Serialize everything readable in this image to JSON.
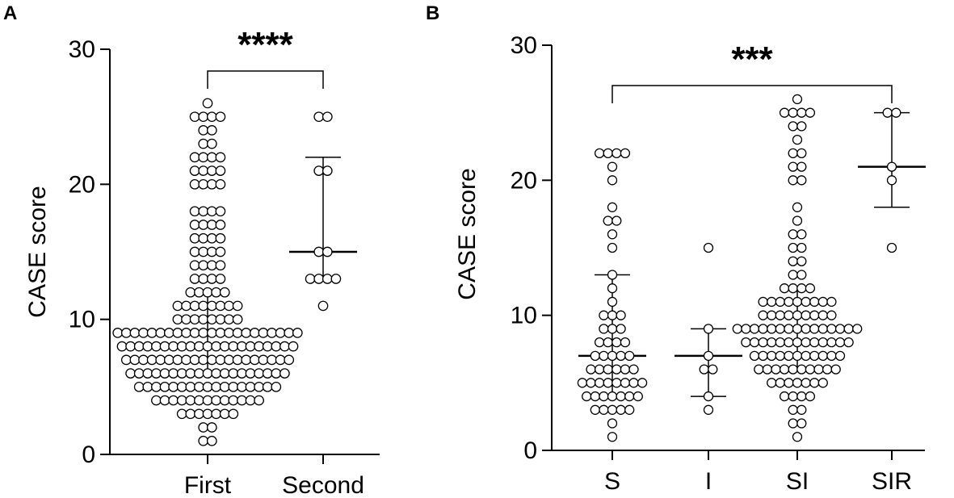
{
  "chart_data": [
    {
      "type": "scatter",
      "subtype": "dot-plot with median and interquartile range",
      "panel": "A",
      "ylabel": "CASE score",
      "xlabel": "",
      "ylim": [
        0,
        30
      ],
      "yticks": [
        0,
        10,
        20,
        30
      ],
      "categories": [
        "First",
        "Second"
      ],
      "points": {
        "First": [
          1,
          1,
          2,
          2,
          3,
          3,
          3,
          3,
          3,
          3,
          3,
          4,
          4,
          4,
          4,
          4,
          4,
          4,
          4,
          4,
          4,
          4,
          4,
          4,
          5,
          5,
          5,
          5,
          5,
          5,
          5,
          5,
          5,
          5,
          5,
          5,
          5,
          5,
          5,
          5,
          5,
          6,
          6,
          6,
          6,
          6,
          6,
          6,
          6,
          6,
          6,
          6,
          6,
          6,
          6,
          6,
          6,
          6,
          6,
          6,
          7,
          7,
          7,
          7,
          7,
          7,
          7,
          7,
          7,
          7,
          7,
          7,
          7,
          7,
          7,
          7,
          7,
          7,
          7,
          7,
          8,
          8,
          8,
          8,
          8,
          8,
          8,
          8,
          8,
          8,
          8,
          8,
          8,
          8,
          8,
          8,
          8,
          8,
          8,
          8,
          8,
          9,
          9,
          9,
          9,
          9,
          9,
          9,
          9,
          9,
          9,
          9,
          9,
          9,
          9,
          9,
          9,
          9,
          9,
          9,
          9,
          9,
          9,
          10,
          10,
          10,
          10,
          10,
          10,
          10,
          10,
          11,
          11,
          11,
          11,
          11,
          11,
          11,
          11,
          12,
          12,
          12,
          12,
          12,
          13,
          13,
          13,
          13,
          14,
          14,
          14,
          14,
          15,
          15,
          15,
          15,
          16,
          16,
          16,
          16,
          17,
          17,
          17,
          17,
          18,
          18,
          18,
          18,
          20,
          20,
          20,
          20,
          21,
          21,
          21,
          21,
          22,
          22,
          22,
          22,
          23,
          23,
          24,
          24,
          25,
          25,
          25,
          25,
          26
        ],
        "Second": [
          11,
          13,
          13,
          13,
          13,
          15,
          15,
          21,
          21,
          25,
          25
        ]
      },
      "summary": {
        "First": {
          "median": 8,
          "q1": 6,
          "q3": 12
        },
        "Second": {
          "median": 15,
          "q1": 13,
          "q3": 22
        }
      },
      "significance": {
        "from": "First",
        "to": "Second",
        "label": "****"
      }
    },
    {
      "type": "scatter",
      "subtype": "dot-plot with median and interquartile range",
      "panel": "B",
      "ylabel": "CASE score",
      "xlabel": "",
      "ylim": [
        0,
        30
      ],
      "yticks": [
        0,
        10,
        20,
        30
      ],
      "categories": [
        "S",
        "I",
        "SI",
        "SIR"
      ],
      "points": {
        "S": [
          1,
          2,
          3,
          3,
          3,
          3,
          3,
          4,
          4,
          4,
          4,
          4,
          4,
          4,
          5,
          5,
          5,
          5,
          5,
          5,
          5,
          5,
          6,
          6,
          6,
          6,
          6,
          6,
          7,
          7,
          7,
          7,
          7,
          8,
          8,
          8,
          8,
          9,
          9,
          9,
          10,
          10,
          10,
          11,
          12,
          13,
          15,
          16,
          17,
          17,
          18,
          20,
          21,
          22,
          22,
          22,
          22
        ],
        "I": [
          3,
          4,
          6,
          6,
          7,
          9,
          15
        ],
        "SI": [
          1,
          2,
          2,
          3,
          3,
          4,
          4,
          4,
          4,
          5,
          5,
          5,
          5,
          5,
          5,
          5,
          6,
          6,
          6,
          6,
          6,
          6,
          6,
          6,
          6,
          6,
          7,
          7,
          7,
          7,
          7,
          7,
          7,
          7,
          7,
          7,
          7,
          8,
          8,
          8,
          8,
          8,
          8,
          8,
          8,
          8,
          8,
          8,
          8,
          8,
          9,
          9,
          9,
          9,
          9,
          9,
          9,
          9,
          9,
          9,
          9,
          9,
          9,
          9,
          9,
          10,
          10,
          10,
          10,
          10,
          10,
          10,
          10,
          10,
          11,
          11,
          11,
          11,
          11,
          11,
          11,
          11,
          11,
          12,
          12,
          12,
          12,
          13,
          13,
          14,
          14,
          15,
          15,
          16,
          16,
          17,
          18,
          20,
          20,
          21,
          21,
          22,
          22,
          23,
          24,
          24,
          25,
          25,
          25,
          25,
          26
        ],
        "SIR": [
          15,
          20,
          21,
          25,
          25
        ]
      },
      "summary": {
        "S": {
          "median": 7,
          "q1": 4,
          "q3": 13
        },
        "I": {
          "median": 7,
          "q1": 4,
          "q3": 9
        },
        "SI": {
          "median": 9,
          "q1": 6,
          "q3": 12
        },
        "SIR": {
          "median": 21,
          "q1": 18,
          "q3": 25
        }
      },
      "significance": {
        "from": "S",
        "to": "SIR",
        "label": "***"
      }
    }
  ]
}
